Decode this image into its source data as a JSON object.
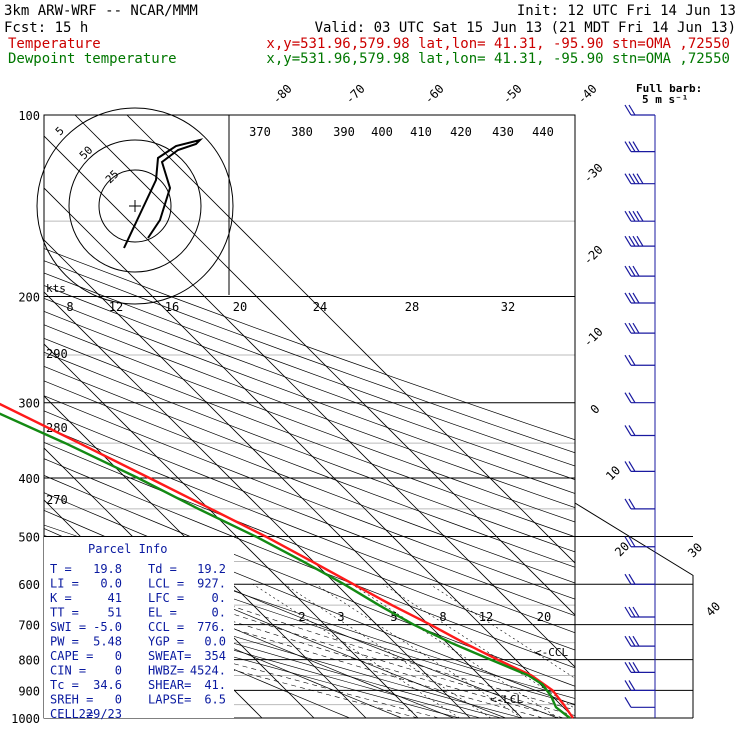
{
  "header": {
    "model": "3km ARW-WRF -- NCAR/MMM",
    "init": "Init: 12 UTC Fri 14 Jun 13",
    "fcst": "Fcst:   15 h",
    "valid": "Valid: 03 UTC Sat 15 Jun 13 (21 MDT Fri 14 Jun 13)",
    "temp_label": "Temperature",
    "temp_info": "x,y=531.96,579.98   lat,lon= 41.31, -95.90  stn=OMA ,72550",
    "dew_label": "Dewpoint temperature",
    "dew_info": "x,y=531.96,579.98   lat,lon= 41.31, -95.90  stn=OMA ,72550"
  },
  "colors": {
    "temperature": "#ff1a1a",
    "dewpoint": "#138a13",
    "wind_barbs": "#1a1aa0",
    "parcel_text": "#0a1aa0",
    "header_temp": "#cc0000",
    "header_dew": "#007700"
  },
  "wind_barb_label": "Full barb:\n5 m s⁻¹",
  "hodograph": {
    "rings": [
      "5",
      "25",
      "50"
    ],
    "units": "kts"
  },
  "theta_labels": [
    "370",
    "380",
    "390",
    "400",
    "410",
    "420",
    "430",
    "440"
  ],
  "theta_e_labels": [
    "290",
    "280",
    "270"
  ],
  "mixing_ratio_labels": [
    "8",
    "12",
    "16",
    "20",
    "24",
    "28",
    "32"
  ],
  "mixing_ratio_low_labels": [
    "2",
    "3",
    "5",
    "8",
    "12",
    "20"
  ],
  "isotherm_labels": [
    "-80",
    "-70",
    "-60",
    "-50",
    "-40",
    "-30",
    "-20",
    "-10",
    "0",
    "10",
    "20",
    "30",
    "40"
  ],
  "parcel_info": {
    "title": "Parcel Info",
    "rows": [
      [
        "T  =",
        "19.8",
        "Td =",
        "19.2"
      ],
      [
        "LI =",
        "0.0",
        "LCL =",
        "927."
      ],
      [
        "K  =",
        "41",
        "LFC =",
        "0."
      ],
      [
        "TT =",
        "51",
        "EL  =",
        "0."
      ],
      [
        "SWI =",
        "-5.0",
        "CCL =",
        "776."
      ],
      [
        "PW =",
        "5.48",
        "YGP =",
        "0.0"
      ],
      [
        "CAPE =",
        "0",
        "SWEAT=",
        "354"
      ],
      [
        "CIN =",
        "0",
        "HWBZ=",
        "4524."
      ],
      [
        "Tc =",
        "34.6",
        "SHEAR=",
        "41."
      ],
      [
        "SREH =",
        "0",
        "LAPSE=",
        "6.5"
      ],
      [
        "CELL =",
        "229/23",
        "",
        ""
      ]
    ]
  },
  "markers": {
    "ccl": "<-CCL",
    "lcl": "<-LCL"
  },
  "chart_data": {
    "type": "line",
    "title": "",
    "xlabel": "",
    "ylabel": "",
    "y_pressure_ticks": [
      100,
      200,
      300,
      400,
      500,
      600,
      700,
      800,
      900,
      1000
    ],
    "y_log_scale": true,
    "series": [
      {
        "name": "Temperature",
        "points_p_T": [
          [
            1000,
            19.8
          ],
          [
            950,
            20.6
          ],
          [
            900,
            21.2
          ],
          [
            850,
            20.0
          ],
          [
            800,
            16.5
          ],
          [
            750,
            13.3
          ],
          [
            700,
            10.3
          ],
          [
            650,
            6.7
          ],
          [
            600,
            3.3
          ],
          [
            550,
            -0.3
          ],
          [
            500,
            -4.4
          ],
          [
            450,
            -9.6
          ],
          [
            400,
            -15.5
          ],
          [
            350,
            -22.3
          ],
          [
            300,
            -30.3
          ],
          [
            250,
            -39.5
          ],
          [
            200,
            -50.2
          ],
          [
            180,
            -54.5
          ],
          [
            160,
            -55.4
          ],
          [
            140,
            -50.0
          ],
          [
            130,
            -49.7
          ],
          [
            100,
            -46.0
          ]
        ]
      },
      {
        "name": "Dewpoint temperature",
        "points_p_Td": [
          [
            1000,
            19.2
          ],
          [
            960,
            18.6
          ],
          [
            920,
            19.8
          ],
          [
            880,
            20.4
          ],
          [
            850,
            19.4
          ],
          [
            800,
            15.2
          ],
          [
            750,
            10.8
          ],
          [
            700,
            7.1
          ],
          [
            650,
            4.2
          ],
          [
            600,
            1.5
          ],
          [
            550,
            -2.0
          ],
          [
            500,
            -6.3
          ],
          [
            450,
            -12.0
          ],
          [
            400,
            -17.7
          ],
          [
            350,
            -25.0
          ],
          [
            300,
            -34.5
          ],
          [
            250,
            -45.6
          ],
          [
            200,
            -57.5
          ],
          [
            180,
            -60.5
          ],
          [
            160,
            -60.2
          ],
          [
            140,
            -57.4
          ],
          [
            100,
            -58.5
          ]
        ]
      }
    ],
    "wind_barbs": [
      {
        "p": 100,
        "kt": 15
      },
      {
        "p": 115,
        "kt": 25
      },
      {
        "p": 130,
        "kt": 35
      },
      {
        "p": 150,
        "kt": 40
      },
      {
        "p": 165,
        "kt": 35
      },
      {
        "p": 185,
        "kt": 30
      },
      {
        "p": 205,
        "kt": 30
      },
      {
        "p": 230,
        "kt": 25
      },
      {
        "p": 260,
        "kt": 20
      },
      {
        "p": 300,
        "kt": 15
      },
      {
        "p": 340,
        "kt": 15
      },
      {
        "p": 390,
        "kt": 15
      },
      {
        "p": 450,
        "kt": 20
      },
      {
        "p": 520,
        "kt": 20
      },
      {
        "p": 600,
        "kt": 20
      },
      {
        "p": 680,
        "kt": 25
      },
      {
        "p": 760,
        "kt": 25
      },
      {
        "p": 840,
        "kt": 25
      },
      {
        "p": 900,
        "kt": 20
      },
      {
        "p": 960,
        "kt": 10
      }
    ]
  }
}
